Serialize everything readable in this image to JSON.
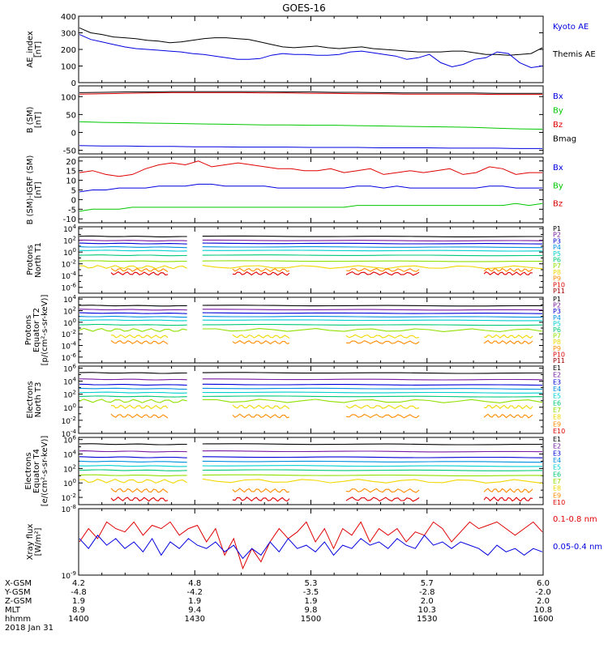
{
  "title": "GOES-16",
  "colors": {
    "black": "#000000",
    "blue": "#0000e0",
    "green": "#00c800",
    "red": "#e00000",
    "ch": [
      "#000000",
      "#7a1aa0",
      "#0000d8",
      "#0090e0",
      "#00d0d0",
      "#00c878",
      "#90e000",
      "#f0d800",
      "#ff8c00",
      "#e00000",
      "#a00000"
    ]
  },
  "chart_data": [
    {
      "type": "line",
      "id": "ae",
      "ylabel": "AE_index\n[nT]",
      "ylim": [
        0,
        400
      ],
      "yticks": [
        "0",
        "100",
        "200",
        "300",
        "400"
      ],
      "legend": [
        "Kyoto AE",
        "Themis AE"
      ],
      "legend_colors": [
        "blue",
        "black"
      ],
      "series": [
        {
          "name": "Themis AE",
          "color": "black",
          "values": [
            330,
            300,
            290,
            275,
            270,
            265,
            255,
            250,
            240,
            245,
            255,
            265,
            270,
            270,
            265,
            260,
            245,
            230,
            215,
            210,
            215,
            220,
            210,
            205,
            210,
            215,
            205,
            200,
            195,
            190,
            185,
            185,
            185,
            190,
            190,
            180,
            170,
            170,
            165,
            170,
            175,
            210
          ]
        },
        {
          "name": "Kyoto AE",
          "color": "blue",
          "values": [
            290,
            260,
            245,
            230,
            215,
            205,
            200,
            195,
            190,
            185,
            175,
            170,
            160,
            150,
            140,
            140,
            145,
            165,
            175,
            170,
            170,
            165,
            165,
            170,
            185,
            190,
            180,
            170,
            160,
            140,
            150,
            170,
            120,
            95,
            110,
            140,
            150,
            185,
            175,
            120,
            90,
            100
          ]
        }
      ]
    },
    {
      "type": "line",
      "id": "bsm",
      "ylabel": "B (SM)\n[nT]",
      "ylim": [
        -60,
        130
      ],
      "yticks": [
        "-50",
        "0",
        "50",
        "100"
      ],
      "legend": [
        "Bx",
        "By",
        "Bz",
        "Bmag"
      ],
      "legend_colors": [
        "blue",
        "green",
        "red",
        "black"
      ],
      "series": [
        {
          "name": "Bmag",
          "color": "black",
          "values": [
            111,
            112,
            113,
            113,
            114,
            114,
            114,
            114,
            114,
            113,
            113,
            112,
            112,
            111,
            110,
            110,
            110,
            110,
            109,
            109,
            109
          ]
        },
        {
          "name": "Bz",
          "color": "red",
          "values": [
            107,
            108,
            109,
            110,
            111,
            111,
            111,
            111,
            110,
            110,
            109,
            109,
            108,
            108,
            107,
            107,
            107,
            107,
            106,
            106,
            106
          ]
        },
        {
          "name": "By",
          "color": "green",
          "values": [
            30,
            28,
            27,
            26,
            25,
            24,
            23,
            22,
            21,
            21,
            20,
            20,
            19,
            18,
            17,
            16,
            15,
            14,
            12,
            10,
            9
          ]
        },
        {
          "name": "Bx",
          "color": "blue",
          "values": [
            -37,
            -38,
            -38,
            -39,
            -39,
            -40,
            -40,
            -41,
            -41,
            -41,
            -42,
            -42,
            -42,
            -43,
            -43,
            -43,
            -44,
            -44,
            -44,
            -45,
            -45
          ]
        }
      ]
    },
    {
      "type": "line",
      "id": "bigrf",
      "ylabel": "B (SM)-IGRF (SM)\n[nT]",
      "ylim": [
        -12,
        22
      ],
      "yticks": [
        "-10",
        "-5",
        "0",
        "5",
        "10",
        "15",
        "20"
      ],
      "legend": [
        "Bx",
        "By",
        "Bz"
      ],
      "legend_colors": [
        "blue",
        "green",
        "red"
      ],
      "series": [
        {
          "name": "Bz",
          "color": "red",
          "values": [
            14,
            15,
            13,
            12,
            13,
            16,
            18,
            19,
            18,
            20,
            17,
            18,
            19,
            18,
            17,
            16,
            16,
            15,
            15,
            16,
            14,
            15,
            16,
            13,
            14,
            15,
            14,
            15,
            16,
            13,
            14,
            17,
            16,
            13,
            14,
            14
          ]
        },
        {
          "name": "Bx",
          "color": "blue",
          "values": [
            4,
            5,
            5,
            6,
            6,
            6,
            7,
            7,
            7,
            8,
            8,
            7,
            7,
            7,
            7,
            6,
            6,
            6,
            6,
            6,
            6,
            7,
            7,
            6,
            7,
            6,
            6,
            6,
            6,
            6,
            6,
            7,
            7,
            6,
            6,
            6
          ]
        },
        {
          "name": "By",
          "color": "green",
          "values": [
            -6,
            -5,
            -5,
            -5,
            -4,
            -4,
            -4,
            -4,
            -4,
            -4,
            -4,
            -4,
            -4,
            -4,
            -4,
            -4,
            -4,
            -4,
            -4,
            -4,
            -4,
            -3,
            -3,
            -3,
            -3,
            -3,
            -3,
            -3,
            -3,
            -3,
            -3,
            -3,
            -3,
            -2,
            -3,
            -2
          ]
        }
      ]
    },
    {
      "type": "line",
      "id": "pn",
      "scale": "log",
      "ylabel": "Protons\nNorth T1",
      "ylog": [
        -7,
        4.3
      ],
      "yticks": [
        {
          "e": 4,
          "label": "10^4"
        },
        {
          "e": 2,
          "label": "10^2"
        },
        {
          "e": 0,
          "label": "10^0"
        },
        {
          "e": -2,
          "label": "10^-2"
        },
        {
          "e": -4,
          "label": "10^-4"
        },
        {
          "e": -6,
          "label": "10^-6"
        }
      ],
      "legend": [
        "P1",
        "P2",
        "P3",
        "P4",
        "P5",
        "P6",
        "P7",
        "P8",
        "P9",
        "P10",
        "P11"
      ],
      "levels_log": [
        2.7,
        2.0,
        1.5,
        0.9,
        0.3,
        -0.5,
        -1.5,
        -2.5,
        -3.0,
        -3.6
      ],
      "gap": [
        1428,
        1432
      ]
    },
    {
      "type": "line",
      "id": "pe",
      "scale": "log",
      "ylabel": "Protons\nEquator T2\n[p/(cm²-s-sr-keV)]",
      "ylog": [
        -7,
        4.3
      ],
      "yticks": [
        {
          "e": 4,
          "label": "10^4"
        },
        {
          "e": 2,
          "label": "10^2"
        },
        {
          "e": 0,
          "label": "10^0"
        },
        {
          "e": -2,
          "label": "10^-2"
        },
        {
          "e": -4,
          "label": "10^-4"
        },
        {
          "e": -6,
          "label": "10^-6"
        }
      ],
      "legend": [
        "P1",
        "P2",
        "P3",
        "P4",
        "P5",
        "P6",
        "P7",
        "P8",
        "P9",
        "P10",
        "P11"
      ],
      "levels_log": [
        2.9,
        2.2,
        1.6,
        1.0,
        0.4,
        -0.4,
        -1.3,
        -2.4,
        -3.4
      ],
      "gap": [
        1428,
        1432
      ]
    },
    {
      "type": "line",
      "id": "en",
      "scale": "log",
      "ylabel": "Electrons\nNorth T3",
      "ylog": [
        -4,
        6.3
      ],
      "yticks": [
        {
          "e": 6,
          "label": "10^6"
        },
        {
          "e": 4,
          "label": "10^4"
        },
        {
          "e": 2,
          "label": "10^2"
        },
        {
          "e": 0,
          "label": "10^0"
        },
        {
          "e": -2,
          "label": "10^-2"
        },
        {
          "e": -4,
          "label": "10^-4"
        }
      ],
      "legend": [
        "E1",
        "E2",
        "E3",
        "E4",
        "E5",
        "E6",
        "E7",
        "E8",
        "E9",
        "E10"
      ],
      "levels_log": [
        5.3,
        4.3,
        3.5,
        2.9,
        2.3,
        1.7,
        1.0,
        0.1,
        -1.3
      ],
      "gap": [
        1428,
        1432
      ]
    },
    {
      "type": "line",
      "id": "ee",
      "scale": "log",
      "ylabel": "Electrons\nEquator T4\n[e/(cm²-s-sr-keV)]",
      "ylog": [
        -3,
        6.3
      ],
      "yticks": [
        {
          "e": 6,
          "label": "10^6"
        },
        {
          "e": 4,
          "label": "10^4"
        },
        {
          "e": 2,
          "label": "10^2"
        },
        {
          "e": 0,
          "label": "10^0"
        },
        {
          "e": -2,
          "label": "10^-2"
        }
      ],
      "legend": [
        "E1",
        "E2",
        "E3",
        "E4",
        "E5",
        "E6",
        "E7",
        "E8",
        "E9",
        "E10"
      ],
      "levels_log": [
        5.4,
        4.4,
        3.6,
        3.0,
        2.4,
        1.8,
        1.1,
        0.3,
        -1.0,
        -2.2
      ],
      "gap": [
        1428,
        1432
      ]
    },
    {
      "type": "line",
      "id": "xray",
      "scale": "log",
      "ylabel": "Xray flux\n[W/m²]",
      "ylog": [
        -9,
        -8
      ],
      "yticks": [
        {
          "e": -8,
          "label": "10^-8"
        },
        {
          "e": -9,
          "label": "10^-9"
        }
      ],
      "legend": [
        "0.1-0.8 nm",
        "0.05-0.4 nm"
      ],
      "legend_colors": [
        "red",
        "blue"
      ],
      "series": [
        {
          "name": "0.1-0.8 nm",
          "color": "red",
          "values": [
            -8.5,
            -8.3,
            -8.45,
            -8.2,
            -8.3,
            -8.35,
            -8.2,
            -8.4,
            -8.25,
            -8.3,
            -8.2,
            -8.4,
            -8.3,
            -8.25,
            -8.5,
            -8.3,
            -8.7,
            -8.45,
            -8.9,
            -8.6,
            -8.8,
            -8.5,
            -8.3,
            -8.45,
            -8.35,
            -8.2,
            -8.5,
            -8.3,
            -8.6,
            -8.3,
            -8.4,
            -8.2,
            -8.5,
            -8.3,
            -8.4,
            -8.3,
            -8.5,
            -8.35,
            -8.4,
            -8.2,
            -8.3,
            -8.5,
            -8.35,
            -8.2,
            -8.3,
            -8.25,
            -8.2,
            -8.3,
            -8.4,
            -8.3,
            -8.2,
            -8.35
          ]
        },
        {
          "name": "0.05-0.4 nm",
          "color": "blue",
          "values": [
            -8.45,
            -8.6,
            -8.4,
            -8.55,
            -8.45,
            -8.6,
            -8.5,
            -8.65,
            -8.45,
            -8.7,
            -8.5,
            -8.6,
            -8.45,
            -8.55,
            -8.6,
            -8.5,
            -8.65,
            -8.55,
            -8.75,
            -8.6,
            -8.7,
            -8.5,
            -8.65,
            -8.45,
            -8.6,
            -8.55,
            -8.65,
            -8.5,
            -8.7,
            -8.55,
            -8.6,
            -8.45,
            -8.55,
            -8.5,
            -8.6,
            -8.45,
            -8.55,
            -8.6,
            -8.4,
            -8.55,
            -8.5,
            -8.6,
            -8.5,
            -8.55,
            -8.6,
            -8.7,
            -8.55,
            -8.65,
            -8.6,
            -8.7,
            -8.6,
            -8.65
          ]
        }
      ]
    }
  ],
  "x_axis": {
    "range_minutes": [
      1400,
      1600
    ],
    "rows": [
      {
        "label": "X-GSM",
        "values": [
          "4.2",
          "4.8",
          "5.3",
          "5.7",
          "6.0"
        ]
      },
      {
        "label": "Y-GSM",
        "values": [
          "-4.8",
          "-4.2",
          "-3.5",
          "-2.8",
          "-2.0"
        ]
      },
      {
        "label": "Z-GSM",
        "values": [
          "1.9",
          "1.9",
          "1.9",
          "2.0",
          "2.0"
        ]
      },
      {
        "label": "MLT",
        "values": [
          "8.9",
          "9.4",
          "9.8",
          "10.3",
          "10.8"
        ]
      },
      {
        "label": "hhmm",
        "values": [
          "1400",
          "1430",
          "1500",
          "1530",
          "1600"
        ]
      }
    ],
    "date": "2018 Jan 31"
  }
}
